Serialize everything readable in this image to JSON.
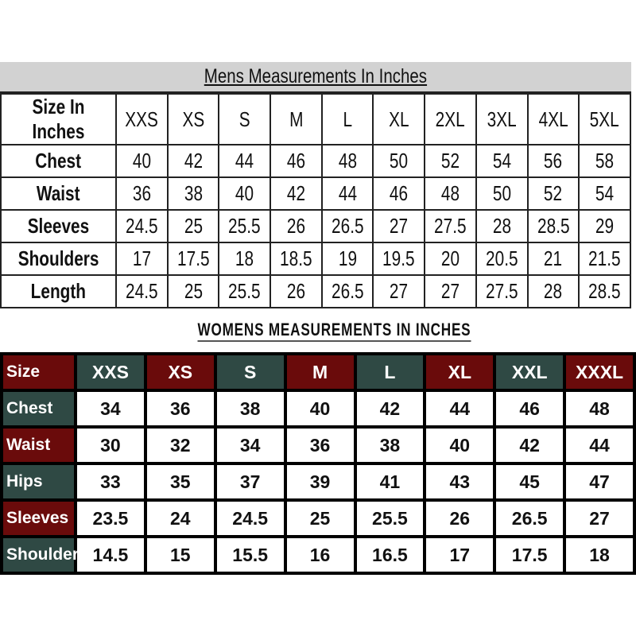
{
  "mens": {
    "title": "Mens Measurements In Inches",
    "header": [
      "Size In Inches",
      "XXS",
      "XS",
      "S",
      "M",
      "L",
      "XL",
      "2XL",
      "3XL",
      "4XL",
      "5XL"
    ],
    "rows": [
      [
        "Chest",
        "40",
        "42",
        "44",
        "46",
        "48",
        "50",
        "52",
        "54",
        "56",
        "58"
      ],
      [
        "Waist",
        "36",
        "38",
        "40",
        "42",
        "44",
        "46",
        "48",
        "50",
        "52",
        "54"
      ],
      [
        "Sleeves",
        "24.5",
        "25",
        "25.5",
        "26",
        "26.5",
        "27",
        "27.5",
        "28",
        "28.5",
        "29"
      ],
      [
        "Shoulders",
        "17",
        "17.5",
        "18",
        "18.5",
        "19",
        "19.5",
        "20",
        "20.5",
        "21",
        "21.5"
      ],
      [
        "Length",
        "24.5",
        "25",
        "25.5",
        "26",
        "26.5",
        "27",
        "27",
        "27.5",
        "28",
        "28.5"
      ]
    ]
  },
  "womens": {
    "title": "WOMENS MEASUREMENTS IN INCHES",
    "header": [
      "Size",
      "XXS",
      "XS",
      "S",
      "M",
      "L",
      "XL",
      "XXL",
      "XXXL"
    ],
    "rows": [
      [
        "Chest",
        "34",
        "36",
        "38",
        "40",
        "42",
        "44",
        "46",
        "48"
      ],
      [
        "Waist",
        "30",
        "32",
        "34",
        "36",
        "38",
        "40",
        "42",
        "44"
      ],
      [
        "Hips",
        "33",
        "35",
        "37",
        "39",
        "41",
        "43",
        "45",
        "47"
      ],
      [
        "Sleeves",
        "23.5",
        "24",
        "24.5",
        "25",
        "25.5",
        "26",
        "26.5",
        "27"
      ],
      [
        "Shoulders",
        "14.5",
        "15",
        "15.5",
        "16",
        "16.5",
        "17",
        "17.5",
        "18"
      ]
    ],
    "colors": {
      "red": "#6a0b0b",
      "green": "#2f4944"
    }
  }
}
